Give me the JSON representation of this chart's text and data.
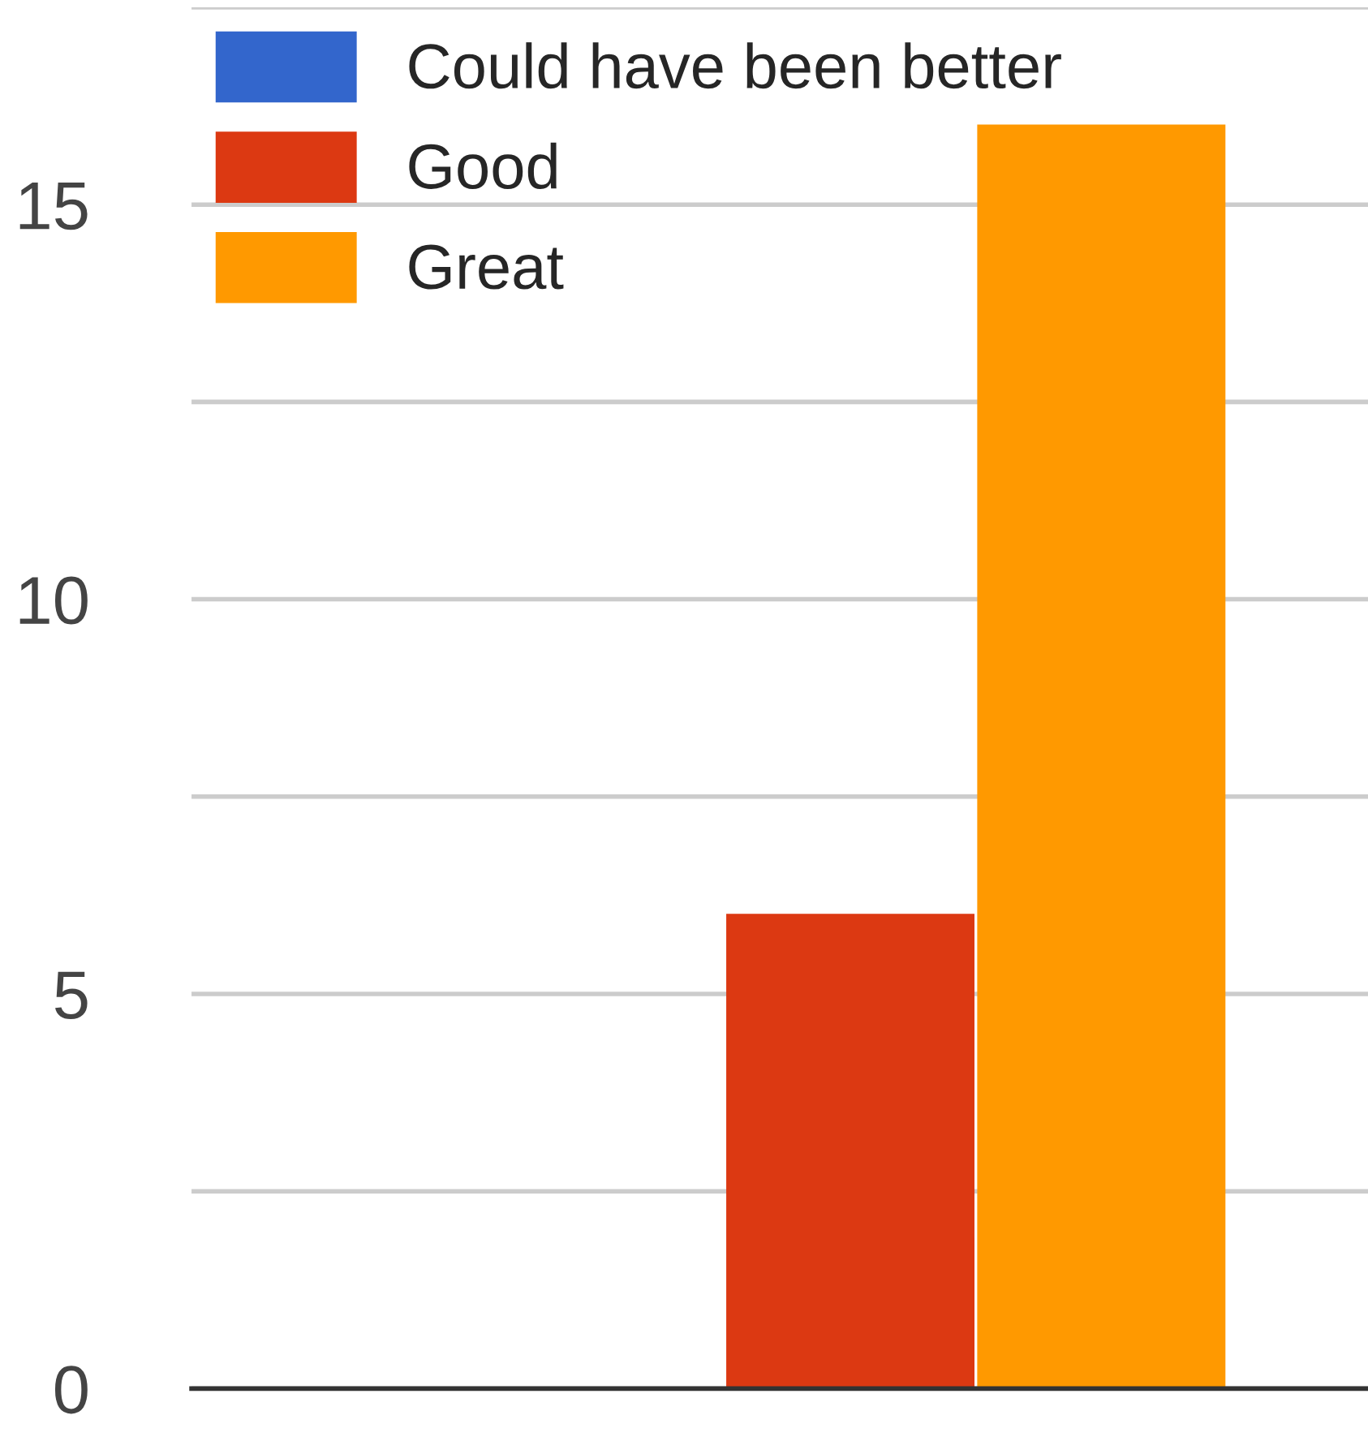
{
  "chart_data": {
    "type": "bar",
    "categories": [
      null
    ],
    "series": [
      {
        "name": "Could have been better",
        "color": "#3366cc",
        "values": [
          0
        ]
      },
      {
        "name": "Good",
        "color": "#dc3912",
        "values": [
          6
        ]
      },
      {
        "name": "Great",
        "color": "#ff9900",
        "values": [
          16
        ]
      }
    ],
    "ylim": [
      0,
      17.5
    ],
    "yticks": [
      0,
      {
        "value": 2.5,
        "label": null
      },
      5,
      {
        "value": 7.5,
        "label": null
      },
      10,
      {
        "value": 12.5,
        "label": null
      },
      15,
      {
        "value": 17.5,
        "label": null
      }
    ],
    "grid": "y",
    "legend": "top left",
    "tick_labels": "y"
  }
}
